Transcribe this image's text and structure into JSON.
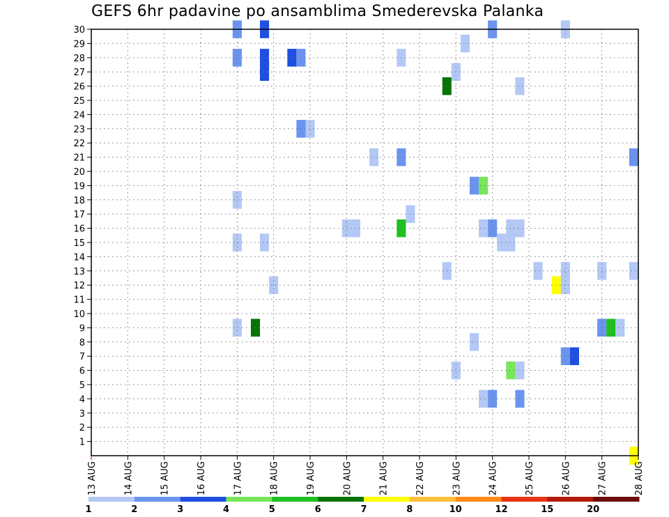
{
  "chart_data": {
    "type": "heatmap",
    "title": "GEFS 6hr padavine po ansamblima Smederevska Palanka",
    "x_tick_labels": [
      "13 AUG",
      "14 AUG",
      "15 AUG",
      "16 AUG",
      "17 AUG",
      "18 AUG",
      "19 AUG",
      "20 AUG",
      "21 AUG",
      "22 AUG",
      "23 AUG",
      "24 AUG",
      "25 AUG",
      "26 AUG",
      "27 AUG",
      "28 AUG"
    ],
    "xlim_days": [
      0,
      15
    ],
    "y_tick_labels": [
      "1",
      "2",
      "3",
      "4",
      "5",
      "6",
      "7",
      "8",
      "9",
      "10",
      "11",
      "12",
      "13",
      "14",
      "15",
      "16",
      "17",
      "18",
      "19",
      "20",
      "21",
      "22",
      "23",
      "24",
      "25",
      "26",
      "27",
      "28",
      "29",
      "30"
    ],
    "ylim": [
      0,
      30
    ],
    "grid": true,
    "legend": {
      "placement": "bottom",
      "bins": [
        "#b4c8f5",
        "#6b94f0",
        "#1e4fe0",
        "#78e65a",
        "#1fc01f",
        "#067306",
        "#ffff00",
        "#ffbe3a",
        "#ff8a14",
        "#e83212",
        "#b41a0a",
        "#6e0a0a"
      ],
      "labels": [
        "1",
        "2",
        "3",
        "4",
        "5",
        "6",
        "7",
        "8",
        "10",
        "12",
        "15",
        "20"
      ]
    },
    "cells": [
      {
        "day": 4.0,
        "member": 30,
        "bin": 1
      },
      {
        "day": 4.75,
        "member": 30,
        "bin": 2
      },
      {
        "day": 11.0,
        "member": 30,
        "bin": 1
      },
      {
        "day": 13.0,
        "member": 30,
        "bin": 0
      },
      {
        "day": 10.25,
        "member": 29,
        "bin": 0
      },
      {
        "day": 4.0,
        "member": 28,
        "bin": 1
      },
      {
        "day": 4.75,
        "member": 28,
        "bin": 2
      },
      {
        "day": 5.5,
        "member": 28,
        "bin": 2
      },
      {
        "day": 5.75,
        "member": 28,
        "bin": 1
      },
      {
        "day": 8.5,
        "member": 28,
        "bin": 0
      },
      {
        "day": 4.75,
        "member": 27,
        "bin": 2
      },
      {
        "day": 10.0,
        "member": 27,
        "bin": 0
      },
      {
        "day": 9.75,
        "member": 26,
        "bin": 5
      },
      {
        "day": 11.75,
        "member": 26,
        "bin": 0
      },
      {
        "day": 5.75,
        "member": 23,
        "bin": 1
      },
      {
        "day": 6.0,
        "member": 23,
        "bin": 0
      },
      {
        "day": 7.75,
        "member": 21,
        "bin": 0
      },
      {
        "day": 8.5,
        "member": 21,
        "bin": 1
      },
      {
        "day": 14.95,
        "member": 21,
        "bin": 1
      },
      {
        "day": 10.5,
        "member": 19,
        "bin": 1
      },
      {
        "day": 10.75,
        "member": 19,
        "bin": 3
      },
      {
        "day": 4.0,
        "member": 18,
        "bin": 0
      },
      {
        "day": 8.75,
        "member": 17,
        "bin": 0
      },
      {
        "day": 7.0,
        "member": 16,
        "bin": 0
      },
      {
        "day": 7.25,
        "member": 16,
        "bin": 0
      },
      {
        "day": 8.5,
        "member": 16,
        "bin": 4
      },
      {
        "day": 10.75,
        "member": 16,
        "bin": 0
      },
      {
        "day": 11.0,
        "member": 16,
        "bin": 1
      },
      {
        "day": 11.5,
        "member": 16,
        "bin": 0
      },
      {
        "day": 11.75,
        "member": 16,
        "bin": 0
      },
      {
        "day": 4.0,
        "member": 15,
        "bin": 0
      },
      {
        "day": 4.75,
        "member": 15,
        "bin": 0
      },
      {
        "day": 11.25,
        "member": 15,
        "bin": 0
      },
      {
        "day": 11.5,
        "member": 15,
        "bin": 0
      },
      {
        "day": 9.75,
        "member": 13,
        "bin": 0
      },
      {
        "day": 12.25,
        "member": 13,
        "bin": 0
      },
      {
        "day": 13.0,
        "member": 13,
        "bin": 0
      },
      {
        "day": 14.0,
        "member": 13,
        "bin": 0
      },
      {
        "day": 14.95,
        "member": 13,
        "bin": 0
      },
      {
        "day": 5.0,
        "member": 12,
        "bin": 0
      },
      {
        "day": 12.75,
        "member": 12,
        "bin": 6
      },
      {
        "day": 13.0,
        "member": 12,
        "bin": 0
      },
      {
        "day": 4.0,
        "member": 9,
        "bin": 0
      },
      {
        "day": 4.5,
        "member": 9,
        "bin": 5
      },
      {
        "day": 14.0,
        "member": 9,
        "bin": 1
      },
      {
        "day": 14.25,
        "member": 9,
        "bin": 4
      },
      {
        "day": 14.5,
        "member": 9,
        "bin": 0
      },
      {
        "day": 10.5,
        "member": 8,
        "bin": 0
      },
      {
        "day": 13.0,
        "member": 7,
        "bin": 1
      },
      {
        "day": 13.25,
        "member": 7,
        "bin": 2
      },
      {
        "day": 10.0,
        "member": 6,
        "bin": 0
      },
      {
        "day": 11.5,
        "member": 6,
        "bin": 3
      },
      {
        "day": 11.75,
        "member": 6,
        "bin": 0
      },
      {
        "day": 10.75,
        "member": 4,
        "bin": 0
      },
      {
        "day": 11.0,
        "member": 4,
        "bin": 1
      },
      {
        "day": 11.75,
        "member": 4,
        "bin": 1
      },
      {
        "day": 14.95,
        "member": 0,
        "bin": 6
      }
    ]
  }
}
